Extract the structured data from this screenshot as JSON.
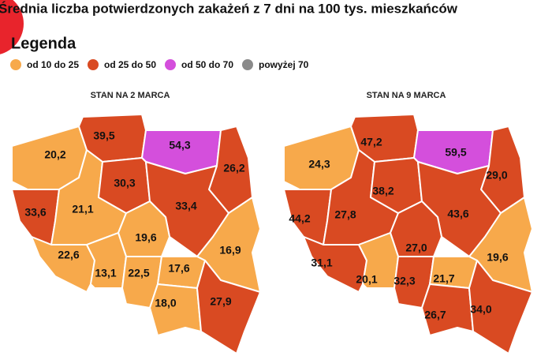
{
  "title": "Średnia liczba potwierdzonych zakażeń z 7 dni na 100 tys. mieszkańców",
  "legend": {
    "title": "Legenda",
    "items": [
      {
        "label": "od 10 do 25",
        "color": "#f7a94b"
      },
      {
        "label": "od 25 do 50",
        "color": "#d94a22"
      },
      {
        "label": "od 50 do 70",
        "color": "#d44fdc"
      },
      {
        "label": "powyżej 70",
        "color": "#8a8a8a"
      }
    ]
  },
  "maps": [
    {
      "title": "STAN NA 2 MARCA",
      "regions": [
        {
          "label": "20,2",
          "color": "#f7a94b"
        },
        {
          "label": "39,5",
          "color": "#d94a22"
        },
        {
          "label": "54,3",
          "color": "#d44fdc"
        },
        {
          "label": "26,2",
          "color": "#d94a22"
        },
        {
          "label": "33,6",
          "color": "#d94a22"
        },
        {
          "label": "21,1",
          "color": "#f7a94b"
        },
        {
          "label": "30,3",
          "color": "#d94a22"
        },
        {
          "label": "33,4",
          "color": "#d94a22"
        },
        {
          "label": "19,6",
          "color": "#f7a94b"
        },
        {
          "label": "16,9",
          "color": "#f7a94b"
        },
        {
          "label": "22,6",
          "color": "#f7a94b"
        },
        {
          "label": "13,1",
          "color": "#f7a94b"
        },
        {
          "label": "22,5",
          "color": "#f7a94b"
        },
        {
          "label": "17,6",
          "color": "#f7a94b"
        },
        {
          "label": "18,0",
          "color": "#f7a94b"
        },
        {
          "label": "27,9",
          "color": "#d94a22"
        }
      ]
    },
    {
      "title": "STAN NA 9 MARCA",
      "regions": [
        {
          "label": "24,3",
          "color": "#f7a94b"
        },
        {
          "label": "47,2",
          "color": "#d94a22"
        },
        {
          "label": "59,5",
          "color": "#d44fdc"
        },
        {
          "label": "29,0",
          "color": "#d94a22"
        },
        {
          "label": "44,2",
          "color": "#d94a22"
        },
        {
          "label": "27,8",
          "color": "#d94a22"
        },
        {
          "label": "38,2",
          "color": "#d94a22"
        },
        {
          "label": "43,6",
          "color": "#d94a22"
        },
        {
          "label": "27,0",
          "color": "#d94a22"
        },
        {
          "label": "19,6",
          "color": "#f7a94b"
        },
        {
          "label": "31,1",
          "color": "#d94a22"
        },
        {
          "label": "20,1",
          "color": "#f7a94b"
        },
        {
          "label": "32,3",
          "color": "#d94a22"
        },
        {
          "label": "21,7",
          "color": "#f7a94b"
        },
        {
          "label": "26,7",
          "color": "#d94a22"
        },
        {
          "label": "34,0",
          "color": "#d94a22"
        }
      ]
    }
  ]
}
